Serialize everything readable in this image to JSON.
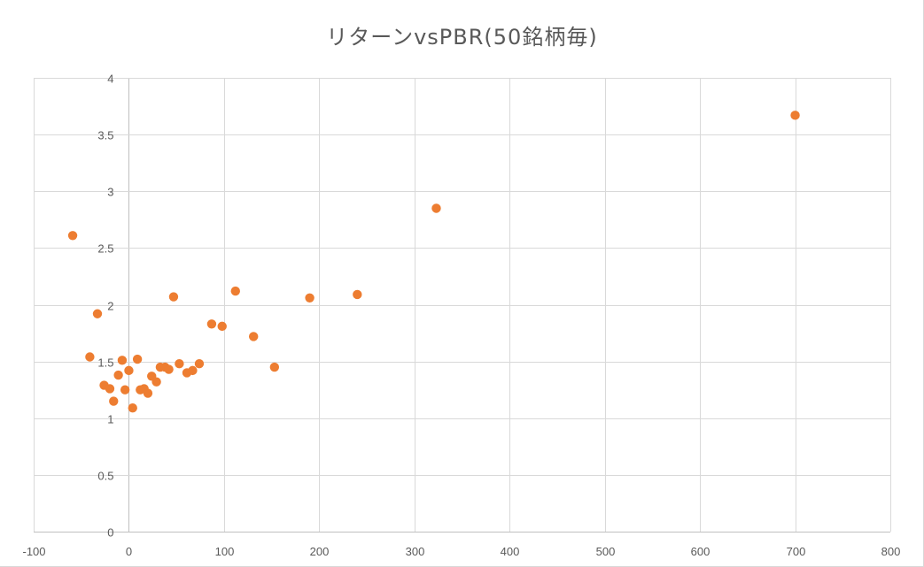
{
  "chart_data": {
    "type": "scatter",
    "title": "リターンvsPBR(50銘柄毎)",
    "xlabel": "",
    "ylabel": "",
    "xlim": [
      -100,
      800
    ],
    "ylim": [
      0,
      4
    ],
    "x_ticks": [
      -100,
      0,
      100,
      200,
      300,
      400,
      500,
      600,
      700,
      800
    ],
    "y_ticks": [
      0,
      0.5,
      1,
      1.5,
      2,
      2.5,
      3,
      3.5,
      4
    ],
    "x_tick_labels": [
      "-100",
      "0",
      "100",
      "200",
      "300",
      "400",
      "500",
      "600",
      "700",
      "800"
    ],
    "y_tick_labels": [
      "0",
      "0.5",
      "1",
      "1.5",
      "2",
      "2.5",
      "3",
      "3.5",
      "4"
    ],
    "grid": true,
    "legend": "none",
    "marker_color": "#ED7D31",
    "grid_color": "#D9D9D9",
    "axis_color": "#BFBFBF",
    "series": [
      {
        "points": [
          [
            -59,
            2.61
          ],
          [
            -33,
            1.92
          ],
          [
            -41,
            1.54
          ],
          [
            -26,
            1.29
          ],
          [
            -20,
            1.26
          ],
          [
            -16,
            1.15
          ],
          [
            -11,
            1.38
          ],
          [
            -7,
            1.51
          ],
          [
            -4,
            1.25
          ],
          [
            0,
            1.42
          ],
          [
            4,
            1.09
          ],
          [
            9,
            1.52
          ],
          [
            12,
            1.25
          ],
          [
            16,
            1.26
          ],
          [
            20,
            1.22
          ],
          [
            24,
            1.37
          ],
          [
            29,
            1.32
          ],
          [
            33,
            1.45
          ],
          [
            38,
            1.45
          ],
          [
            42,
            1.43
          ],
          [
            47,
            2.07
          ],
          [
            53,
            1.48
          ],
          [
            61,
            1.4
          ],
          [
            67,
            1.42
          ],
          [
            74,
            1.48
          ],
          [
            87,
            1.83
          ],
          [
            98,
            1.81
          ],
          [
            112,
            2.12
          ],
          [
            131,
            1.72
          ],
          [
            153,
            1.45
          ],
          [
            190,
            2.06
          ],
          [
            240,
            2.09
          ],
          [
            323,
            2.85
          ],
          [
            700,
            3.67
          ]
        ]
      }
    ]
  }
}
